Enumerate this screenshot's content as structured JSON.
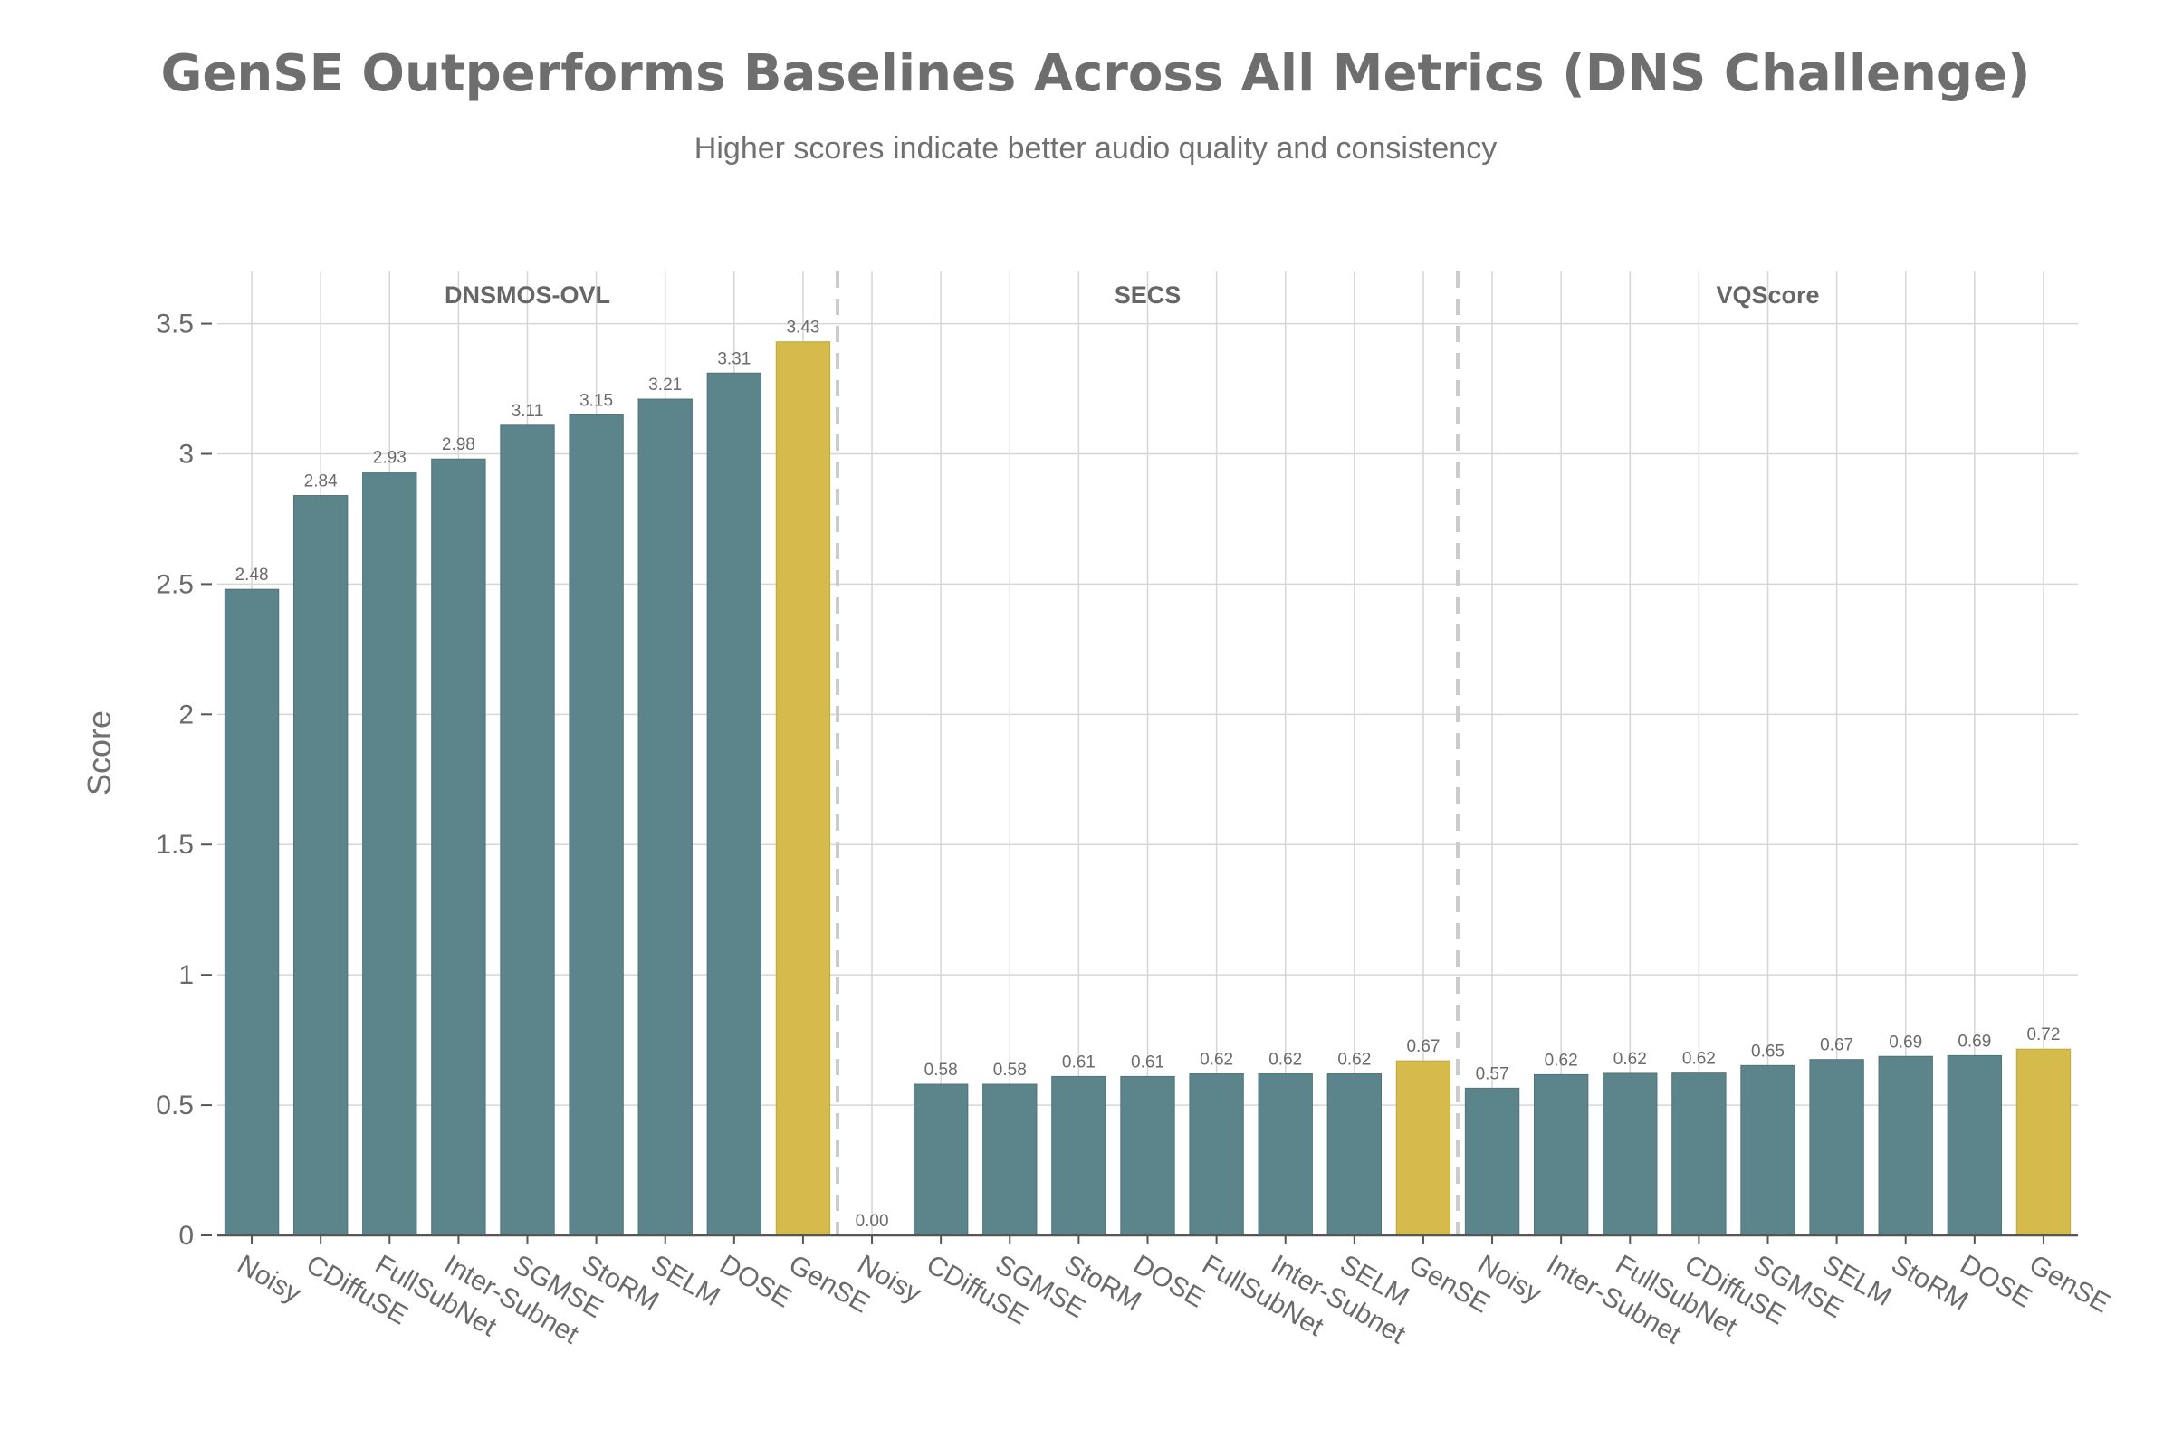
{
  "title": "GenSE Outperforms Baselines Across All Metrics (DNS Challenge)",
  "subtitle": "Higher scores indicate better audio quality and consistency",
  "colors": {
    "baseline": "#5c858b",
    "highlight": "#d4bb4c",
    "grid": "#d6d6d6",
    "axis": "#555555",
    "divider": "#cccccc"
  },
  "chart_data": {
    "type": "bar",
    "ylabel": "Score",
    "ylim": [
      0,
      3.7
    ],
    "yticks": [
      0,
      0.5,
      1,
      1.5,
      2,
      2.5,
      3,
      3.5
    ],
    "ytick_labels": [
      "0",
      "0.5",
      "1",
      "1.5",
      "2",
      "2.5",
      "3",
      "3.5"
    ],
    "highlight_category": "GenSE",
    "grid": true,
    "groups": [
      {
        "name": "DNSMOS-OVL",
        "categories": [
          "Noisy",
          "CDiffuSE",
          "FullSubNet",
          "Inter-Subnet",
          "SGMSE",
          "StoRM",
          "SELM",
          "DOSE",
          "GenSE"
        ],
        "values": [
          2.48,
          2.84,
          2.93,
          2.98,
          3.11,
          3.15,
          3.21,
          3.31,
          3.43
        ],
        "labels": [
          "2.48",
          "2.84",
          "2.93",
          "2.98",
          "3.11",
          "3.15",
          "3.21",
          "3.31",
          "3.43"
        ]
      },
      {
        "name": "SECS",
        "categories": [
          "Noisy",
          "CDiffuSE",
          "SGMSE",
          "StoRM",
          "DOSE",
          "FullSubNet",
          "Inter-Subnet",
          "SELM",
          "GenSE"
        ],
        "values": [
          0.0,
          0.58,
          0.58,
          0.61,
          0.61,
          0.62,
          0.62,
          0.62,
          0.67
        ],
        "labels": [
          "0.00",
          "0.58",
          "0.58",
          "0.61",
          "0.61",
          "0.62",
          "0.62",
          "0.62",
          "0.67"
        ]
      },
      {
        "name": "VQScore",
        "categories": [
          "Noisy",
          "Inter-Subnet",
          "FullSubNet",
          "CDiffuSE",
          "SGMSE",
          "SELM",
          "StoRM",
          "DOSE",
          "GenSE"
        ],
        "values": [
          0.565,
          0.617,
          0.622,
          0.623,
          0.652,
          0.675,
          0.687,
          0.69,
          0.715
        ],
        "labels": [
          "0.57",
          "0.62",
          "0.62",
          "0.62",
          "0.65",
          "0.67",
          "0.69",
          "0.69",
          "0.72"
        ]
      }
    ]
  }
}
